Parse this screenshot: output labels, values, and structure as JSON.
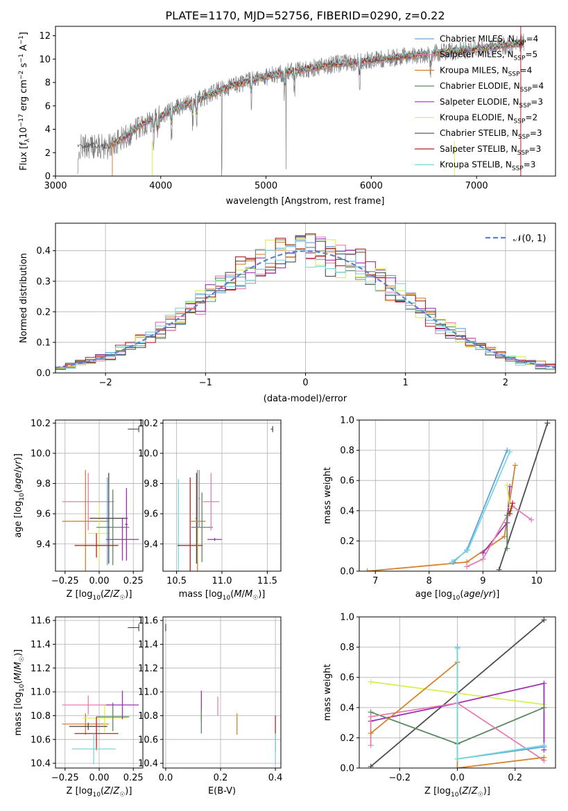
{
  "figure": {
    "title": "PLATE=1170, MJD=52756, FIBERID=0290, z=0.22"
  },
  "colors": {
    "Chabrier MILES": "#5fa2dd",
    "Salpeter MILES": "#e87cb1",
    "Kroupa MILES": "#d6822e",
    "Chabrier ELODIE": "#5b8a62",
    "Salpeter ELODIE": "#9c30b4",
    "Kroupa ELODIE": "#d8ee55",
    "Chabrier STELIB": "#4d4d4d",
    "Salpeter STELIB": "#b52222",
    "Kroupa STELIB": "#79d7dc",
    "gaussian": "#5a82d2",
    "data": "#808080"
  },
  "chart_data": [
    {
      "id": "spectrum",
      "type": "line",
      "title": "PLATE=1170, MJD=52756, FIBERID=0290, z=0.22",
      "xlabel": "wavelength [Angstrom, rest frame]",
      "ylabel_parts": [
        "Flux [f",
        "λ",
        "10",
        "−17",
        " erg cm",
        "−2",
        " s",
        "−1",
        " A",
        "−1",
        "]"
      ],
      "xlim": [
        3000,
        7750
      ],
      "ylim": [
        0,
        12.8
      ],
      "xticks": [
        3000,
        4000,
        5000,
        6000,
        7000
      ],
      "yticks": [
        0,
        2,
        4,
        6,
        8,
        10,
        12
      ],
      "continuum_x": [
        3210,
        3300,
        3500,
        3600,
        3700,
        3800,
        3900,
        4000,
        4100,
        4200,
        4300,
        4400,
        4500,
        4600,
        4700,
        4800,
        4900,
        5000,
        5100,
        5200,
        5300,
        5400,
        5500,
        5600,
        5700,
        5800,
        5900,
        6000,
        6100,
        6200,
        6300,
        6400,
        6500,
        6600,
        6700,
        6800,
        6900,
        7000,
        7100,
        7200,
        7300,
        7400,
        7450
      ],
      "continuum_y": [
        2.4,
        2.6,
        2.5,
        3.0,
        3.6,
        4.3,
        4.8,
        5.1,
        5.6,
        6.0,
        6.3,
        6.7,
        7.1,
        7.5,
        7.8,
        8.0,
        8.3,
        8.5,
        8.7,
        8.9,
        9.0,
        9.2,
        9.3,
        9.5,
        9.6,
        9.7,
        9.8,
        9.9,
        10.0,
        10.1,
        10.2,
        10.3,
        10.4,
        10.5,
        10.6,
        10.7,
        10.8,
        10.9,
        11.0,
        11.1,
        11.2,
        11.3,
        11.4
      ],
      "legend": [
        {
          "name": "Chabrier MILES",
          "nssp": "4"
        },
        {
          "name": "Salpeter MILES",
          "nssp": "5"
        },
        {
          "name": "Kroupa MILES",
          "nssp": "4"
        },
        {
          "name": "Chabrier ELODIE",
          "nssp": "4"
        },
        {
          "name": "Salpeter ELODIE",
          "nssp": "3"
        },
        {
          "name": "Kroupa ELODIE",
          "nssp": "2"
        },
        {
          "name": "Chabrier STELIB",
          "nssp": "3"
        },
        {
          "name": "Salpeter STELIB",
          "nssp": "3"
        },
        {
          "name": "Kroupa STELIB",
          "nssp": "3"
        }
      ],
      "legend_prefix": "N",
      "legend_sub": "SSP",
      "legend_placement": "upper right",
      "grid": false
    },
    {
      "id": "residuals",
      "type": "line",
      "xlabel": "(data-model)/error",
      "ylabel": "Normed distribution",
      "xlim": [
        -2.5,
        2.5
      ],
      "ylim": [
        0,
        0.49
      ],
      "xticks": [
        -2,
        -1,
        0,
        1,
        2
      ],
      "xticklabels": [
        "−2",
        "−1",
        "0",
        "1",
        "2"
      ],
      "yticks": [
        0,
        0.1,
        0.2,
        0.3,
        0.4
      ],
      "yticklabels": [
        "0.0",
        "0.1",
        "0.2",
        "0.3",
        "0.4"
      ],
      "legend": [
        "𝒩(0, 1)"
      ],
      "legend_placement": "upper right",
      "grid": true,
      "gaussian": {
        "mean": 0,
        "sigma": 1
      }
    },
    {
      "id": "age-vs-Z",
      "type": "scatter",
      "xlabel": "Z [log10(Z/Z☉)]",
      "ylabel": "age  [log10(age/yr)]",
      "xlim": [
        -0.32,
        0.32
      ],
      "ylim": [
        9.22,
        10.22
      ],
      "xticks": [
        -0.25,
        0.0,
        0.25
      ],
      "xticklabels": [
        "−0.25",
        "0.00",
        "0.25"
      ],
      "yticks": [
        9.4,
        9.6,
        9.8,
        10.0,
        10.2
      ],
      "yticklabels": [
        "9.4",
        "9.6",
        "9.8",
        "10.0",
        "10.2"
      ],
      "grid": true,
      "points": [
        {
          "model": "Salpeter MILES",
          "x": -0.08,
          "xerr": 0.19,
          "y": 9.68,
          "yerr": 0.19
        },
        {
          "model": "Kroupa MILES",
          "x": -0.1,
          "xerr": 0.17,
          "y": 9.55,
          "yerr": 0.34
        },
        {
          "model": "Kroupa ELODIE",
          "x": 0.0,
          "xerr": 0.08,
          "y": 9.47,
          "yerr": 0.2
        },
        {
          "model": "Chabrier MILES",
          "x": 0.06,
          "xerr": 0.01,
          "y": 9.55,
          "yerr": 0.29
        },
        {
          "model": "Chabrier ELODIE",
          "x": 0.1,
          "xerr": 0.12,
          "y": 9.51,
          "yerr": 0.25
        },
        {
          "model": "Chabrier STELIB",
          "x": 0.07,
          "xerr": 0.14,
          "y": 9.57,
          "yerr": 0.3
        },
        {
          "model": "Salpeter ELODIE",
          "x": 0.17,
          "xerr": 0.12,
          "y": 9.43,
          "yerr": 0.14
        },
        {
          "model": "Salpeter STELIB",
          "x": -0.02,
          "xerr": 0.16,
          "y": 9.39,
          "yerr": 0.08
        },
        {
          "model": "Salpeter ELODIE",
          "x": 0.2,
          "xerr": 0.01,
          "y": 9.53,
          "yerr": 0.24
        }
      ],
      "ref": {
        "x": 0.25,
        "xerr": 0.04,
        "y": 10.16,
        "yerr": 0.02
      }
    },
    {
      "id": "age-vs-mass",
      "type": "scatter",
      "xlabel": "mass [log10(M/M☉)]",
      "ylabel": "",
      "xlim": [
        10.35,
        11.65
      ],
      "ylim": [
        9.22,
        10.22
      ],
      "xticks": [
        10.5,
        11.0,
        11.5
      ],
      "xticklabels": [
        "10.5",
        "11.0",
        "11.5"
      ],
      "yticks": [
        9.4,
        9.6,
        9.8,
        10.0,
        10.2
      ],
      "yticklabels": [
        "9.4",
        "9.6",
        "9.8",
        "10.0",
        "10.2"
      ],
      "grid": true,
      "points": [
        {
          "model": "Kroupa STELIB",
          "x": 10.52,
          "xerr": 0.01,
          "y": 9.4,
          "yerr": 0.43
        },
        {
          "model": "Salpeter STELIB",
          "x": 10.65,
          "xerr": 0.14,
          "y": 9.39,
          "yerr": 0.45
        },
        {
          "model": "Chabrier STELIB",
          "x": 10.72,
          "xerr": 0.01,
          "y": 9.57,
          "yerr": 0.3
        },
        {
          "model": "Kroupa MILES",
          "x": 10.73,
          "xerr": 0.09,
          "y": 9.55,
          "yerr": 0.34
        },
        {
          "model": "Chabrier ELODIE",
          "x": 10.78,
          "xerr": 0.12,
          "y": 9.51,
          "yerr": 0.23
        },
        {
          "model": "Salpeter MILES",
          "x": 10.88,
          "xerr": 0.09,
          "y": 9.68,
          "yerr": 0.19
        },
        {
          "model": "Salpeter ELODIE",
          "x": 10.92,
          "xerr": 0.08,
          "y": 9.43,
          "yerr": 0.01
        },
        {
          "model": "Chabrier MILES",
          "x": 10.75,
          "xerr": 0.01,
          "y": 9.7,
          "yerr": 0.19
        }
      ],
      "ref": {
        "x": 11.55,
        "xerr": 0.01,
        "y": 10.16,
        "yerr": 0.02
      }
    },
    {
      "id": "mass-weight-vs-age",
      "type": "line",
      "xlabel": "age  [log10(age/yr)]",
      "ylabel": "mass weight",
      "xlim": [
        6.7,
        10.35
      ],
      "ylim": [
        0,
        1.0
      ],
      "xticks": [
        7,
        8,
        9,
        10
      ],
      "yticks": [
        0,
        0.2,
        0.4,
        0.6,
        0.8,
        1.0
      ],
      "yticklabels": [
        "0.0",
        "0.2",
        "0.4",
        "0.6",
        "0.8",
        "1.0"
      ],
      "grid": true,
      "series": [
        {
          "model": "Chabrier STELIB",
          "x": [
            9.3,
            10.2
          ],
          "y": [
            0.01,
            0.98
          ]
        },
        {
          "model": "Kroupa MILES",
          "x": [
            6.85,
            8.7,
            9.4,
            9.6
          ],
          "y": [
            0.0,
            0.06,
            0.23,
            0.7
          ]
        },
        {
          "model": "Chabrier MILES",
          "x": [
            8.45,
            8.7,
            9.45
          ],
          "y": [
            0.06,
            0.14,
            0.8
          ]
        },
        {
          "model": "Kroupa STELIB",
          "x": [
            8.42,
            8.72,
            9.5
          ],
          "y": [
            0.06,
            0.14,
            0.79
          ]
        },
        {
          "model": "Salpeter ELODIE",
          "x": [
            9.0,
            9.45,
            9.5
          ],
          "y": [
            0.12,
            0.32,
            0.56
          ]
        },
        {
          "model": "Salpeter MILES",
          "x": [
            8.7,
            9.0,
            9.55,
            9.9
          ],
          "y": [
            0.03,
            0.08,
            0.43,
            0.34
          ]
        },
        {
          "model": "Chabrier ELODIE",
          "x": [
            9.45,
            9.45,
            9.5
          ],
          "y": [
            0.15,
            0.37,
            0.4
          ]
        },
        {
          "model": "Kroupa ELODIE",
          "x": [
            9.45,
            9.5
          ],
          "y": [
            0.57,
            0.42
          ]
        },
        {
          "model": "Salpeter STELIB",
          "x": [
            9.5,
            9.55
          ],
          "y": [
            0.38,
            0.45
          ]
        }
      ]
    },
    {
      "id": "mass-vs-Z",
      "type": "scatter",
      "xlabel": "Z [log10(Z/Z☉)]",
      "ylabel": "mass [log10(M/M☉)]",
      "xlim": [
        -0.32,
        0.32
      ],
      "ylim": [
        10.36,
        11.63
      ],
      "xticks": [
        -0.25,
        0.0,
        0.25
      ],
      "xticklabels": [
        "−0.25",
        "0.00",
        "0.25"
      ],
      "yticks": [
        10.4,
        10.6,
        10.8,
        11.0,
        11.2,
        11.4,
        11.6
      ],
      "yticklabels": [
        "10.4",
        "10.6",
        "10.8",
        "11.0",
        "11.2",
        "11.4",
        "11.6"
      ],
      "grid": true,
      "points": [
        {
          "model": "Salpeter MILES",
          "x": -0.08,
          "xerr": 0.19,
          "y": 10.89,
          "yerr": 0.08
        },
        {
          "model": "Kroupa MILES",
          "x": -0.1,
          "xerr": 0.17,
          "y": 10.73,
          "yerr": 0.09
        },
        {
          "model": "Kroupa ELODIE",
          "x": 0.04,
          "xerr": 0.16,
          "y": 10.78,
          "yerr": 0.12
        },
        {
          "model": "Chabrier ELODIE",
          "x": 0.1,
          "xerr": 0.12,
          "y": 10.79,
          "yerr": 0.12
        },
        {
          "model": "Salpeter ELODIE",
          "x": 0.17,
          "xerr": 0.12,
          "y": 10.89,
          "yerr": 0.12
        },
        {
          "model": "Salpeter STELIB",
          "x": -0.02,
          "xerr": 0.16,
          "y": 10.65,
          "yerr": 0.14
        },
        {
          "model": "Kroupa STELIB",
          "x": -0.04,
          "xerr": 0.16,
          "y": 10.52,
          "yerr": 0.13
        },
        {
          "model": "Chabrier STELIB",
          "x": -0.08,
          "xerr": 0.14,
          "y": 10.71,
          "yerr": 0.03
        }
      ],
      "ref": {
        "x": 0.25,
        "xerr": 0.04,
        "y": 11.54,
        "yerr": 0.03
      }
    },
    {
      "id": "mass-vs-ebv",
      "type": "scatter",
      "xlabel": "E(B-V)",
      "ylabel": "",
      "xlim": [
        -0.01,
        0.42
      ],
      "ylim": [
        10.36,
        11.63
      ],
      "xticks": [
        0.0,
        0.2,
        0.4
      ],
      "xticklabels": [
        "0.0",
        "0.2",
        "0.4"
      ],
      "yticks": [
        10.4,
        10.6,
        10.8,
        11.0,
        11.2,
        11.4,
        11.6
      ],
      "yticklabels": [
        "10.4",
        "10.6",
        "10.8",
        "11.0",
        "11.2",
        "11.4",
        "11.6"
      ],
      "grid": true,
      "points": [
        {
          "model": "Salpeter ELODIE",
          "x": 0.13,
          "xerr": 0.0,
          "y": 10.88,
          "yerr": 0.13
        },
        {
          "model": "Chabrier ELODIE",
          "x": 0.13,
          "xerr": 0.0,
          "y": 10.75,
          "yerr": 0.1
        },
        {
          "model": "Salpeter MILES",
          "x": 0.19,
          "xerr": 0.0,
          "y": 10.88,
          "yerr": 0.08
        },
        {
          "model": "Kroupa MILES",
          "x": 0.26,
          "xerr": 0.0,
          "y": 10.73,
          "yerr": 0.09
        },
        {
          "model": "Salpeter STELIB",
          "x": 0.4,
          "xerr": 0.0,
          "y": 10.65,
          "yerr": 0.15
        },
        {
          "model": "Kroupa STELIB",
          "x": 0.4,
          "xerr": 0.0,
          "y": 10.52,
          "yerr": 0.13
        }
      ],
      "ref": {
        "x": 0.0,
        "xerr": 0.0,
        "y": 11.54,
        "yerr": 0.03
      }
    },
    {
      "id": "mass-weight-vs-Z",
      "type": "line",
      "xlabel": "Z [log10(Z/Z☉)]",
      "ylabel": "mass weight",
      "xlim": [
        -0.34,
        0.34
      ],
      "ylim": [
        0,
        1.0
      ],
      "xticks": [
        -0.2,
        0.0,
        0.2
      ],
      "xticklabels": [
        "−0.2",
        "0.0",
        "0.2"
      ],
      "yticks": [
        0,
        0.2,
        0.4,
        0.6,
        0.8,
        1.0
      ],
      "yticklabels": [
        "0.0",
        "0.2",
        "0.4",
        "0.6",
        "0.8",
        "1.0"
      ],
      "grid": true,
      "series": [
        {
          "model": "Chabrier STELIB",
          "x": [
            -0.3,
            0.3
          ],
          "y": [
            0.01,
            0.98
          ]
        },
        {
          "model": "Kroupa ELODIE",
          "x": [
            -0.3,
            0.3
          ],
          "y": [
            0.57,
            0.42
          ]
        },
        {
          "model": "Salpeter ELODIE",
          "x": [
            -0.3,
            0.0,
            0.3,
            0.3
          ],
          "y": [
            0.31,
            0.43,
            0.56,
            0.12
          ]
        },
        {
          "model": "Chabrier ELODIE",
          "x": [
            -0.3,
            0.0,
            0.3
          ],
          "y": [
            0.37,
            0.16,
            0.4
          ]
        },
        {
          "model": "Salpeter MILES",
          "x": [
            -0.3,
            -0.3,
            0.0,
            0.3
          ],
          "y": [
            0.15,
            0.34,
            0.43,
            0.05
          ]
        },
        {
          "model": "Kroupa MILES",
          "x": [
            -0.3,
            0.0,
            0.0,
            0.3
          ],
          "y": [
            0.23,
            0.7,
            0.0,
            0.07
          ]
        },
        {
          "model": "Chabrier MILES",
          "x": [
            0.0,
            0.0,
            0.3
          ],
          "y": [
            0.8,
            0.06,
            0.14
          ]
        },
        {
          "model": "Kroupa STELIB",
          "x": [
            0.0,
            0.0,
            0.3
          ],
          "y": [
            0.79,
            0.06,
            0.15
          ]
        }
      ]
    }
  ]
}
